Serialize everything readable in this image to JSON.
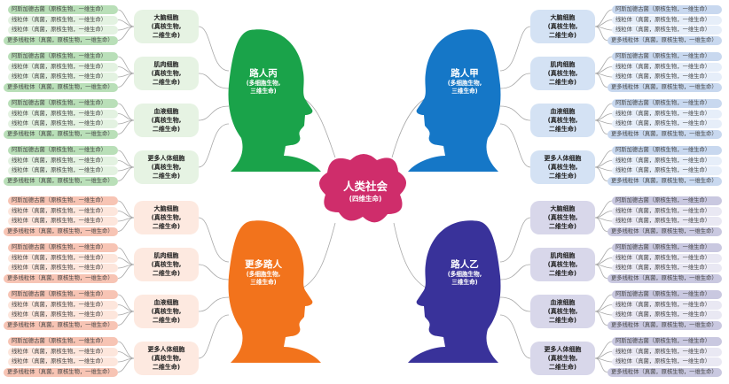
{
  "center": {
    "title": "人类社会",
    "subtitle": "(四维生命)",
    "color": "#cf2d6b"
  },
  "heads": [
    {
      "id": "tl",
      "title": "路人丙",
      "sub1": "(多细胞生物,",
      "sub2": "三维生命)",
      "color": "#1aa34a"
    },
    {
      "id": "tr",
      "title": "路人甲",
      "sub1": "(多细胞生物,",
      "sub2": "三维生命)",
      "color": "#1577c7"
    },
    {
      "id": "bl",
      "title": "更多路人",
      "sub1": "(多细胞生物,",
      "sub2": "三维生命)",
      "color": "#f2731c"
    },
    {
      "id": "br",
      "title": "路人乙",
      "sub1": "(多细胞生物,",
      "sub2": "三维生命)",
      "color": "#39329a"
    }
  ],
  "cells": [
    {
      "l1": "大脑细胞",
      "l2": "(真核生物,",
      "l3": "二维生命)"
    },
    {
      "l1": "肌肉细胞",
      "l2": "(真核生物,",
      "l3": "二维生命)"
    },
    {
      "l1": "血液细胞",
      "l2": "(真核生物,",
      "l3": "二维生命)"
    },
    {
      "l1": "更多人体细胞",
      "l2": "(真核生物,",
      "l3": "二维生命)"
    }
  ],
  "leaves": [
    "阿斯加德古菌（原核生物，一维生命）",
    "线粒体（真菌，原核生物，一维生命）",
    "线粒体（真菌，原核生物，一维生命）",
    "更多线粒体（真菌，原核生物，一维生命）"
  ],
  "palette": {
    "tl": {
      "leafDark": "#b9dfb8",
      "leafLight": "#e3f2e1",
      "mid": "#e6f3e3"
    },
    "tr": {
      "leafDark": "#c8d8ef",
      "leafLight": "#e6eef9",
      "mid": "#d4e2f4"
    },
    "bl": {
      "leafDark": "#f7c4b4",
      "leafLight": "#fde6dc",
      "mid": "#fde9e0"
    },
    "br": {
      "leafDark": "#c9c8e0",
      "leafLight": "#e9e8f3",
      "mid": "#d8d7ea"
    }
  }
}
